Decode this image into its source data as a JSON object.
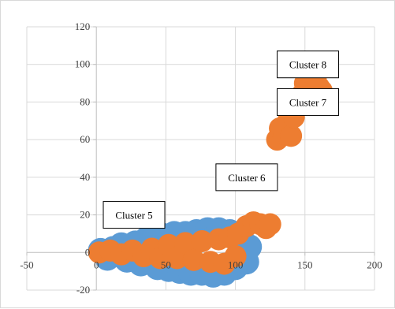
{
  "chart_data": {
    "type": "scatter",
    "title": "",
    "xlabel": "",
    "ylabel": "",
    "xlim": [
      -50,
      200
    ],
    "ylim": [
      -20,
      120
    ],
    "x_ticks": [
      -50,
      0,
      50,
      100,
      150,
      200
    ],
    "y_ticks": [
      -20,
      0,
      20,
      40,
      60,
      80,
      100,
      120
    ],
    "grid": {
      "x": true,
      "y": true
    },
    "legend": "none",
    "colors": {
      "series_blue": "#5B9BD5",
      "series_orange": "#ED7D31",
      "grid": "#d9d9d9"
    },
    "series": [
      {
        "color": "#5B9BD5",
        "points": [
          {
            "x": 3,
            "y": 1
          },
          {
            "x": 8,
            "y": -3
          },
          {
            "x": 12,
            "y": 2
          },
          {
            "x": 18,
            "y": 4
          },
          {
            "x": 22,
            "y": -4
          },
          {
            "x": 28,
            "y": 5
          },
          {
            "x": 32,
            "y": -6
          },
          {
            "x": 36,
            "y": 7
          },
          {
            "x": 40,
            "y": 8
          },
          {
            "x": 44,
            "y": -8
          },
          {
            "x": 48,
            "y": 9
          },
          {
            "x": 52,
            "y": -9
          },
          {
            "x": 56,
            "y": 10
          },
          {
            "x": 60,
            "y": -10
          },
          {
            "x": 64,
            "y": 10
          },
          {
            "x": 68,
            "y": -11
          },
          {
            "x": 72,
            "y": 11
          },
          {
            "x": 76,
            "y": -11
          },
          {
            "x": 80,
            "y": 12
          },
          {
            "x": 84,
            "y": -12
          },
          {
            "x": 88,
            "y": 12
          },
          {
            "x": 92,
            "y": -11
          },
          {
            "x": 96,
            "y": 11
          },
          {
            "x": 100,
            "y": -8
          },
          {
            "x": 104,
            "y": 9
          },
          {
            "x": 108,
            "y": -5
          },
          {
            "x": 110,
            "y": 3
          }
        ]
      },
      {
        "color": "#ED7D31",
        "points": [
          {
            "x": 2,
            "y": 0
          },
          {
            "x": 10,
            "y": 1
          },
          {
            "x": 18,
            "y": -1
          },
          {
            "x": 26,
            "y": 1
          },
          {
            "x": 34,
            "y": -2
          },
          {
            "x": 40,
            "y": 2
          },
          {
            "x": 46,
            "y": -3
          },
          {
            "x": 52,
            "y": 4
          },
          {
            "x": 58,
            "y": -3
          },
          {
            "x": 64,
            "y": 5
          },
          {
            "x": 70,
            "y": -4
          },
          {
            "x": 76,
            "y": 6
          },
          {
            "x": 82,
            "y": -5
          },
          {
            "x": 88,
            "y": 7
          },
          {
            "x": 92,
            "y": -6
          },
          {
            "x": 96,
            "y": 8
          },
          {
            "x": 100,
            "y": -2
          },
          {
            "x": 102,
            "y": 10
          },
          {
            "x": 108,
            "y": 14
          },
          {
            "x": 113,
            "y": 16
          },
          {
            "x": 118,
            "y": 15
          },
          {
            "x": 122,
            "y": 13
          },
          {
            "x": 125,
            "y": 15
          },
          {
            "x": 130,
            "y": 60
          },
          {
            "x": 132,
            "y": 66
          },
          {
            "x": 135,
            "y": 63
          },
          {
            "x": 138,
            "y": 70
          },
          {
            "x": 140,
            "y": 62
          },
          {
            "x": 142,
            "y": 72
          },
          {
            "x": 145,
            "y": 78
          },
          {
            "x": 148,
            "y": 84
          },
          {
            "x": 150,
            "y": 90
          },
          {
            "x": 152,
            "y": 96
          },
          {
            "x": 155,
            "y": 100
          },
          {
            "x": 158,
            "y": 94
          },
          {
            "x": 160,
            "y": 88
          },
          {
            "x": 162,
            "y": 86
          },
          {
            "x": 157,
            "y": 82
          }
        ]
      }
    ],
    "annotations": [
      {
        "text": "Cluster 5",
        "x": 5,
        "y": 20
      },
      {
        "text": "Cluster 6",
        "x": 86,
        "y": 40
      },
      {
        "text": "Cluster 7",
        "x": 130,
        "y": 80
      },
      {
        "text": "Cluster 8",
        "x": 130,
        "y": 100
      }
    ]
  }
}
